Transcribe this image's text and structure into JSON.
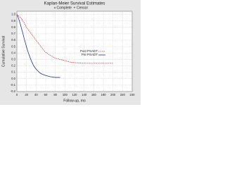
{
  "chart_data": {
    "type": "line",
    "title": "Kaplan-Meier Survival Estimates",
    "legend_items": [
      "Complete",
      "Censor"
    ],
    "x_label": "Follow-up, mo",
    "y_label": "Cumulative Survival",
    "xlim": [
      0,
      240
    ],
    "xticks": [
      0,
      20,
      40,
      60,
      80,
      100,
      120,
      140,
      160,
      180,
      200,
      220,
      240
    ],
    "ylim": [
      -0.2,
      1.05
    ],
    "yticks": [
      {
        "value": 1.0,
        "label": "1.0"
      },
      0.9,
      0.8,
      0.7,
      0.6,
      0.5,
      0.4,
      0.3,
      0.2,
      0.1,
      {
        "value": 0.0,
        "label": "0.0"
      },
      -0.1,
      -0.2
    ],
    "grid": true,
    "series": [
      {
        "name": "Post PSADT",
        "color": "#c03030",
        "dashed": true,
        "x": [
          0,
          5,
          10,
          15,
          20,
          25,
          30,
          35,
          40,
          45,
          50,
          55,
          60,
          70,
          80,
          90,
          100,
          110,
          120,
          140,
          160,
          180,
          200
        ],
        "values": [
          1,
          0.97,
          0.93,
          0.87,
          0.8,
          0.75,
          0.7,
          0.65,
          0.6,
          0.55,
          0.5,
          0.45,
          0.41,
          0.36,
          0.32,
          0.3,
          0.28,
          0.26,
          0.25,
          0.24,
          0.24,
          0.24,
          0.24
        ]
      },
      {
        "name": "Pre PSADT",
        "color": "#2030a0",
        "dashed": false,
        "x": [
          0,
          3,
          6,
          9,
          12,
          15,
          18,
          21,
          24,
          27,
          30,
          35,
          40,
          45,
          50,
          60,
          70,
          80,
          90
        ],
        "values": [
          1,
          0.95,
          0.88,
          0.8,
          0.72,
          0.63,
          0.55,
          0.47,
          0.4,
          0.34,
          0.28,
          0.2,
          0.15,
          0.11,
          0.08,
          0.05,
          0.03,
          0.02,
          0.02
        ]
      }
    ]
  }
}
